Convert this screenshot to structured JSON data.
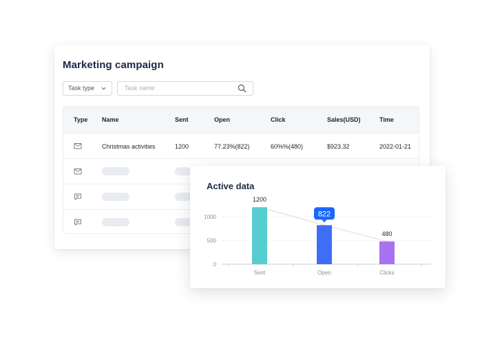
{
  "main": {
    "title": "Marketing campaign",
    "filters": {
      "task_type_label": "Task type",
      "task_name_placeholder": "Task name"
    },
    "table": {
      "headers": [
        "Type",
        "Name",
        "Sent",
        "Open",
        "Click",
        "Sales(USD)",
        "Time"
      ],
      "rows": [
        {
          "type_icon": "mail-icon",
          "name": "Christmas activities",
          "sent": "1200",
          "open": "77.23%(822)",
          "click": "60%%(480)",
          "sales": "$923.32",
          "time": "2022-01-21"
        },
        {
          "type_icon": "mail-icon"
        },
        {
          "type_icon": "message-icon"
        },
        {
          "type_icon": "message-icon"
        }
      ]
    }
  },
  "chart_card": {
    "title": "Active data"
  },
  "chart_data": {
    "type": "bar",
    "title": "Active data",
    "categories": [
      "Sent",
      "Open",
      "Clicks"
    ],
    "values": [
      1200,
      822,
      480
    ],
    "value_labels": [
      "1200",
      "822",
      "480"
    ],
    "highlighted_index": 1,
    "bar_colors": [
      "#56cdd0",
      "#3d6ef5",
      "#a872f2"
    ],
    "yticks": [
      "0",
      "500",
      "1000"
    ],
    "ylim": [
      0,
      1200
    ],
    "grid": true,
    "trend_line": true,
    "legend": "none"
  },
  "colors": {
    "accent": "#1a66ff",
    "title": "#1d2744"
  }
}
